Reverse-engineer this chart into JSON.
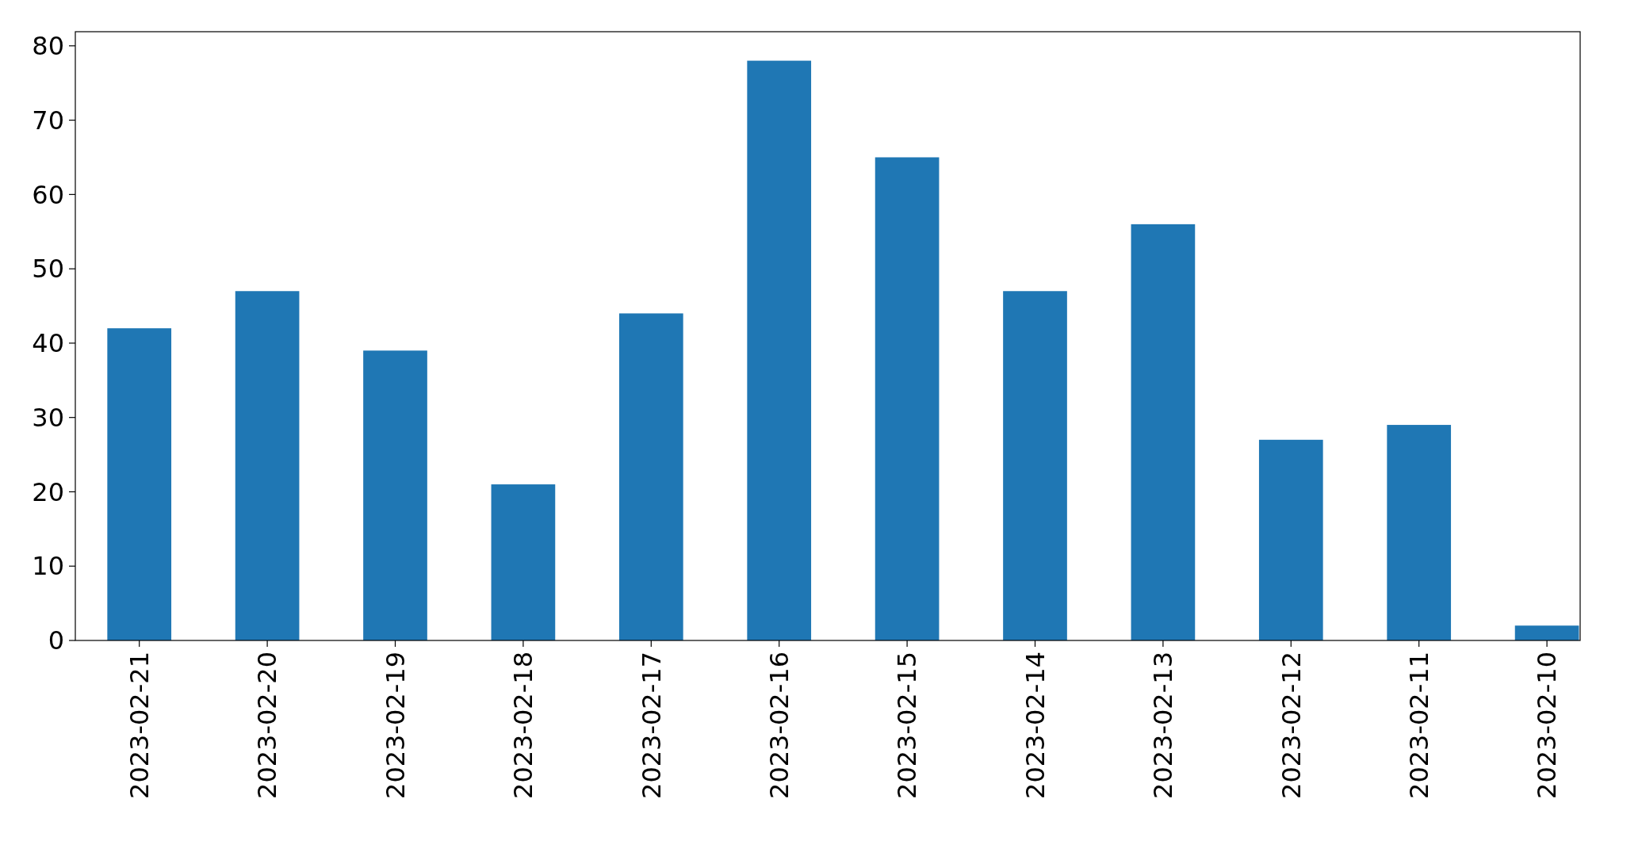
{
  "chart_data": {
    "type": "bar",
    "categories": [
      "2023-02-21",
      "2023-02-20",
      "2023-02-19",
      "2023-02-18",
      "2023-02-17",
      "2023-02-16",
      "2023-02-15",
      "2023-02-14",
      "2023-02-13",
      "2023-02-12",
      "2023-02-11",
      "2023-02-10"
    ],
    "values": [
      42,
      47,
      39,
      21,
      44,
      78,
      65,
      47,
      56,
      27,
      29,
      2
    ],
    "color": "#1f77b4",
    "ylim": [
      0,
      81.9
    ],
    "yticks": [
      0,
      10,
      20,
      30,
      40,
      50,
      60,
      70,
      80
    ],
    "grid": false
  }
}
